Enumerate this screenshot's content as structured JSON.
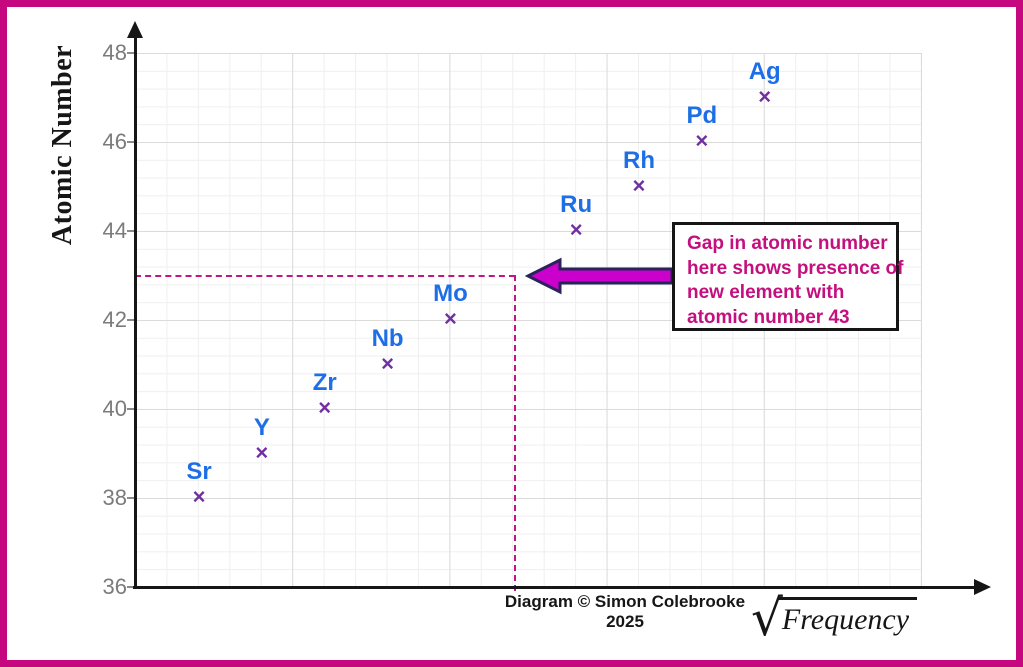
{
  "frame": {
    "border_color": "#C5087F"
  },
  "chart": {
    "y_axis_title": "Atomic Number",
    "x_axis_title_prefix": "√",
    "x_axis_title": "Frequency",
    "copyright": "Diagram © Simon Colebrooke 2025",
    "y_ticks": [
      "48",
      "46",
      "44",
      "42",
      "40",
      "38",
      "36"
    ]
  },
  "chart_data": {
    "type": "scatter",
    "title": "",
    "xlabel": "√Frequency",
    "ylabel": "Atomic Number",
    "ylim": [
      36,
      48
    ],
    "y_major_unit": 2,
    "x_tick_labels_shown": false,
    "grid": "on",
    "marker": "×",
    "marker_color": "#7030A0",
    "label_color": "#1E6FE6",
    "points": [
      {
        "label": "Sr",
        "atomic_number": 38
      },
      {
        "label": "Y",
        "atomic_number": 39
      },
      {
        "label": "Zr",
        "atomic_number": 40
      },
      {
        "label": "Nb",
        "atomic_number": 41
      },
      {
        "label": "Mo",
        "atomic_number": 42
      },
      {
        "label": "Ru",
        "atomic_number": 44
      },
      {
        "label": "Rh",
        "atomic_number": 45
      },
      {
        "label": "Pd",
        "atomic_number": 46
      },
      {
        "label": "Ag",
        "atomic_number": 47
      }
    ],
    "gap": {
      "atomic_number": 43
    },
    "guide_lines": {
      "y_value": 43,
      "style": "dashed",
      "color": "#C01585"
    }
  },
  "annotation": {
    "lines": [
      "Gap in atomic number",
      "here shows presence of",
      "new element with",
      "atomic number 43"
    ],
    "text_color": "#C4107F",
    "arrow_fill": "#CC00CC",
    "arrow_outline": "#28235A"
  }
}
